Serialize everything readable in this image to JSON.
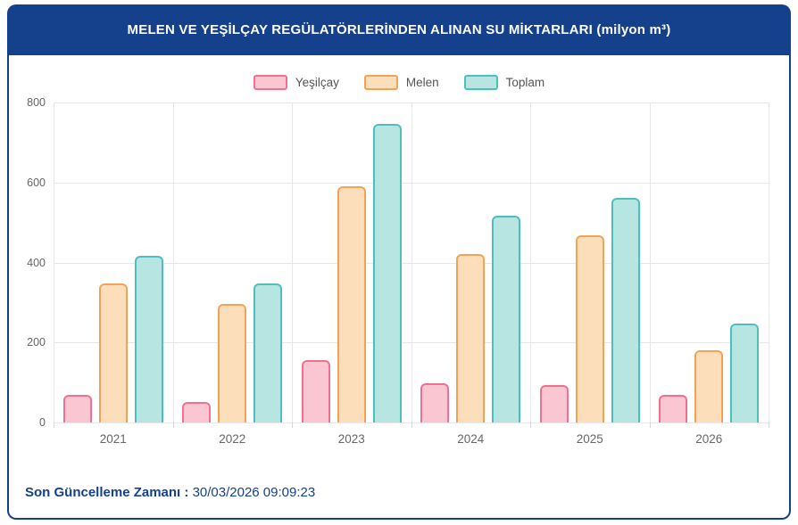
{
  "header": {
    "title": "MELEN VE YEŞİLÇAY REGÜLATÖRLERİNDEN ALINAN SU MİKTARLARI (milyon m³)"
  },
  "footer": {
    "label": "Son Güncelleme Zamanı",
    "separator": " : ",
    "value": "30/03/2026 09:09:23"
  },
  "colors": {
    "header_bg": "#15408C",
    "card_border": "#15408C",
    "footer_text": "#15408C",
    "grid": "#E7E7E7",
    "axis_text": "#666666"
  },
  "chart_data": {
    "type": "bar",
    "title": "MELEN VE YEŞİLÇAY REGÜLATÖRLERİNDEN ALINAN SU MİKTARLARI (milyon m³)",
    "categories": [
      "2021",
      "2022",
      "2023",
      "2024",
      "2025",
      "2026"
    ],
    "series": [
      {
        "name": "Yeşilçay",
        "values": [
          70,
          52,
          157,
          97,
          94,
          68
        ],
        "fill": "#F9C6D2",
        "border": "#F0708F"
      },
      {
        "name": "Melen",
        "values": [
          347,
          296,
          590,
          421,
          468,
          180
        ],
        "fill": "#FCDEBB",
        "border": "#F3A355"
      },
      {
        "name": "Toplam",
        "values": [
          417,
          348,
          747,
          518,
          562,
          248
        ],
        "fill": "#B7E5E1",
        "border": "#4EBFBE"
      }
    ],
    "xlabel": "",
    "ylabel": "",
    "ylim": [
      0,
      800
    ],
    "yticks": [
      0,
      200,
      400,
      600,
      800
    ],
    "grid": true,
    "legend_position": "top"
  }
}
